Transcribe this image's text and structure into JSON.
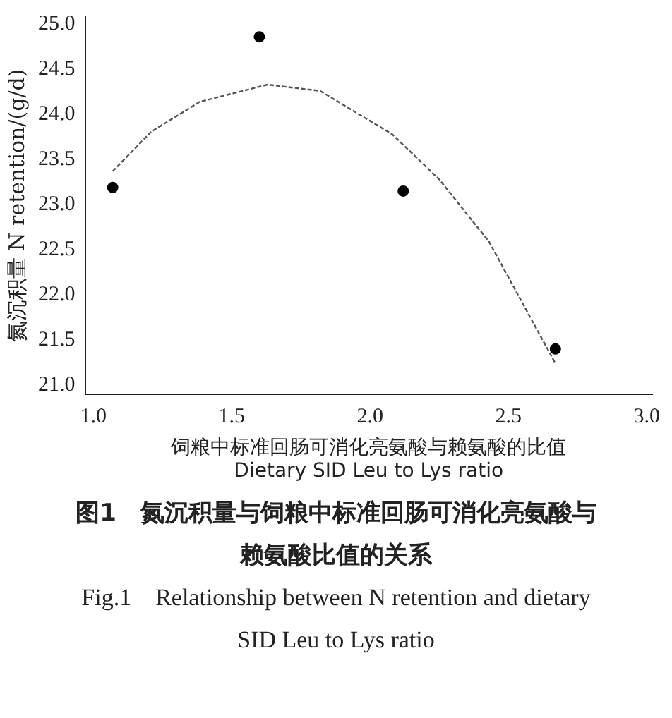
{
  "chart_data": {
    "type": "scatter",
    "title": "图1　氮沉积量与饲粮中标准回肠可消化亮氨酸与赖氨酸比值的关系",
    "subtitle": "Fig.1　Relationship between N retention and dietary SID Leu to Lys ratio",
    "xlabel": "饲粮中标准回肠可消化亮氨酸与赖氨酸的比值\nDietary SID Leu to Lys ratio",
    "ylabel": "氮沉积量 N retention/(g/d)",
    "xlim": [
      0.97,
      3.02
    ],
    "xticks": [
      {
        "value": 1,
        "label": "1.0"
      },
      {
        "value": 1.5,
        "label": "1.5"
      },
      {
        "value": 2,
        "label": "2.0"
      },
      {
        "value": 2.5,
        "label": "2.5"
      },
      {
        "value": 3,
        "label": "3.0"
      }
    ],
    "ylim": [
      20.9,
      25.08
    ],
    "yticks": [
      {
        "value": 21,
        "label": "21.0"
      },
      {
        "value": 21.5,
        "label": "21.5"
      },
      {
        "value": 22,
        "label": "22.0"
      },
      {
        "value": 22.5,
        "label": "22.5"
      },
      {
        "value": 23,
        "label": "23.0"
      },
      {
        "value": 23.5,
        "label": "23.5"
      },
      {
        "value": 24,
        "label": "24.0"
      },
      {
        "value": 24.5,
        "label": "24.5"
      },
      {
        "value": 25,
        "label": "25.0"
      }
    ],
    "grid": false,
    "legend": false,
    "marker": "circle",
    "series": [
      {
        "type": "scatter",
        "color": "#000000",
        "x": [
          1.07,
          1.6,
          2.12,
          2.67
        ],
        "values": [
          23.19,
          24.86,
          23.15,
          21.4
        ]
      },
      {
        "type": "line",
        "color": "#555555",
        "line_style": "dashed",
        "marker": "none",
        "x": [
          1.07,
          1.21,
          1.385,
          1.63,
          1.82,
          2.08,
          2.25,
          2.43,
          2.67
        ],
        "values": [
          23.37,
          23.81,
          24.14,
          24.33,
          24.26,
          23.78,
          23.28,
          22.59,
          21.24
        ]
      }
    ]
  }
}
